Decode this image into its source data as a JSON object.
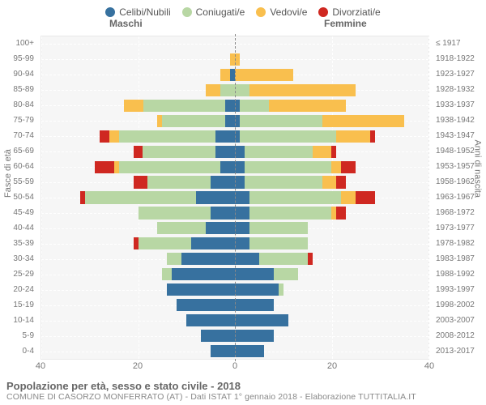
{
  "legend": [
    {
      "label": "Celibi/Nubili",
      "color": "#37719f"
    },
    {
      "label": "Coniugati/e",
      "color": "#b8d7a4"
    },
    {
      "label": "Vedovi/e",
      "color": "#f9bf4e"
    },
    {
      "label": "Divorziati/e",
      "color": "#cf2821"
    }
  ],
  "header": {
    "male": "Maschi",
    "female": "Femmine"
  },
  "left_axis_title": "Fasce di età",
  "right_axis_title": "Anni di nascita",
  "title": "Popolazione per età, sesso e stato civile - 2018",
  "subtitle": "COMUNE DI CASORZO MONFERRATO (AT) - Dati ISTAT 1° gennaio 2018 - Elaborazione TUTTITALIA.IT",
  "x": {
    "max": 40,
    "ticks": [
      40,
      20,
      0,
      20,
      40
    ]
  },
  "row_gap": 0.2,
  "chart_bg": "#f6f6f6",
  "grid_color": "#ffffff",
  "age_groups": [
    {
      "age": "100+",
      "years": "≤ 1917",
      "m": {
        "c": 0,
        "co": 0,
        "v": 0,
        "d": 0
      },
      "f": {
        "c": 0,
        "co": 0,
        "v": 0,
        "d": 0
      }
    },
    {
      "age": "95-99",
      "years": "1918-1922",
      "m": {
        "c": 0,
        "co": 0,
        "v": 1,
        "d": 0
      },
      "f": {
        "c": 0,
        "co": 0,
        "v": 1,
        "d": 0
      }
    },
    {
      "age": "90-94",
      "years": "1923-1927",
      "m": {
        "c": 1,
        "co": 0,
        "v": 2,
        "d": 0
      },
      "f": {
        "c": 0,
        "co": 0,
        "v": 12,
        "d": 0
      }
    },
    {
      "age": "85-89",
      "years": "1928-1932",
      "m": {
        "c": 0,
        "co": 3,
        "v": 3,
        "d": 0
      },
      "f": {
        "c": 0,
        "co": 3,
        "v": 22,
        "d": 0
      }
    },
    {
      "age": "80-84",
      "years": "1933-1937",
      "m": {
        "c": 2,
        "co": 17,
        "v": 4,
        "d": 0
      },
      "f": {
        "c": 1,
        "co": 6,
        "v": 16,
        "d": 0
      }
    },
    {
      "age": "75-79",
      "years": "1938-1942",
      "m": {
        "c": 2,
        "co": 13,
        "v": 1,
        "d": 0
      },
      "f": {
        "c": 1,
        "co": 17,
        "v": 17,
        "d": 0
      }
    },
    {
      "age": "70-74",
      "years": "1943-1947",
      "m": {
        "c": 4,
        "co": 20,
        "v": 2,
        "d": 2
      },
      "f": {
        "c": 1,
        "co": 20,
        "v": 7,
        "d": 1
      }
    },
    {
      "age": "65-69",
      "years": "1948-1952",
      "m": {
        "c": 4,
        "co": 15,
        "v": 0,
        "d": 2
      },
      "f": {
        "c": 2,
        "co": 14,
        "v": 4,
        "d": 1
      }
    },
    {
      "age": "60-64",
      "years": "1953-1957",
      "m": {
        "c": 3,
        "co": 21,
        "v": 1,
        "d": 4
      },
      "f": {
        "c": 2,
        "co": 18,
        "v": 2,
        "d": 3
      }
    },
    {
      "age": "55-59",
      "years": "1958-1962",
      "m": {
        "c": 5,
        "co": 13,
        "v": 0,
        "d": 3
      },
      "f": {
        "c": 2,
        "co": 16,
        "v": 3,
        "d": 2
      }
    },
    {
      "age": "50-54",
      "years": "1963-1967",
      "m": {
        "c": 8,
        "co": 23,
        "v": 0,
        "d": 1
      },
      "f": {
        "c": 3,
        "co": 19,
        "v": 3,
        "d": 4
      }
    },
    {
      "age": "45-49",
      "years": "1968-1972",
      "m": {
        "c": 5,
        "co": 15,
        "v": 0,
        "d": 0
      },
      "f": {
        "c": 3,
        "co": 17,
        "v": 1,
        "d": 2
      }
    },
    {
      "age": "40-44",
      "years": "1973-1977",
      "m": {
        "c": 6,
        "co": 10,
        "v": 0,
        "d": 0
      },
      "f": {
        "c": 3,
        "co": 12,
        "v": 0,
        "d": 0
      }
    },
    {
      "age": "35-39",
      "years": "1978-1982",
      "m": {
        "c": 9,
        "co": 11,
        "v": 0,
        "d": 1
      },
      "f": {
        "c": 3,
        "co": 12,
        "v": 0,
        "d": 0
      }
    },
    {
      "age": "30-34",
      "years": "1983-1987",
      "m": {
        "c": 11,
        "co": 3,
        "v": 0,
        "d": 0
      },
      "f": {
        "c": 5,
        "co": 10,
        "v": 0,
        "d": 1
      }
    },
    {
      "age": "25-29",
      "years": "1988-1992",
      "m": {
        "c": 13,
        "co": 2,
        "v": 0,
        "d": 0
      },
      "f": {
        "c": 8,
        "co": 5,
        "v": 0,
        "d": 0
      }
    },
    {
      "age": "20-24",
      "years": "1993-1997",
      "m": {
        "c": 14,
        "co": 0,
        "v": 0,
        "d": 0
      },
      "f": {
        "c": 9,
        "co": 1,
        "v": 0,
        "d": 0
      }
    },
    {
      "age": "15-19",
      "years": "1998-2002",
      "m": {
        "c": 12,
        "co": 0,
        "v": 0,
        "d": 0
      },
      "f": {
        "c": 8,
        "co": 0,
        "v": 0,
        "d": 0
      }
    },
    {
      "age": "10-14",
      "years": "2003-2007",
      "m": {
        "c": 10,
        "co": 0,
        "v": 0,
        "d": 0
      },
      "f": {
        "c": 11,
        "co": 0,
        "v": 0,
        "d": 0
      }
    },
    {
      "age": "5-9",
      "years": "2008-2012",
      "m": {
        "c": 7,
        "co": 0,
        "v": 0,
        "d": 0
      },
      "f": {
        "c": 8,
        "co": 0,
        "v": 0,
        "d": 0
      }
    },
    {
      "age": "0-4",
      "years": "2013-2017",
      "m": {
        "c": 5,
        "co": 0,
        "v": 0,
        "d": 0
      },
      "f": {
        "c": 6,
        "co": 0,
        "v": 0,
        "d": 0
      }
    }
  ]
}
